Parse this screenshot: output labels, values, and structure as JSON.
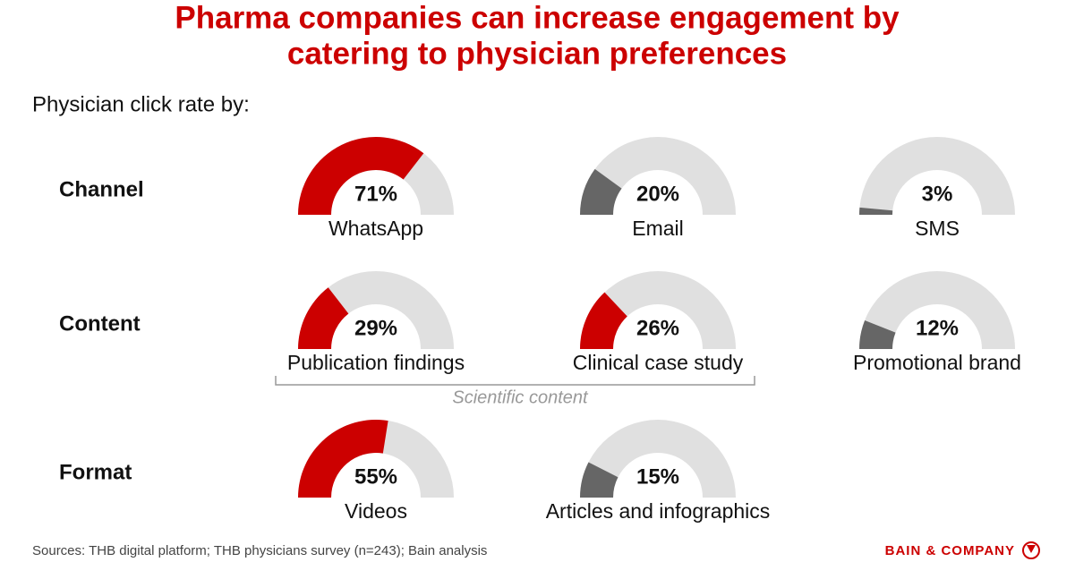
{
  "title_lines": [
    "Pharma companies can increase engagement by",
    "catering to physician preferences"
  ],
  "subtitle": "Physician click rate by:",
  "chart_data": [
    {
      "type": "gauge",
      "title": "Channel",
      "categories": [
        "WhatsApp",
        "Email",
        "SMS"
      ],
      "values": [
        71,
        20,
        3
      ],
      "value_labels": [
        "71%",
        "20%",
        "3%"
      ],
      "colors": [
        "#cc0000",
        "#666666",
        "#666666"
      ],
      "track_color": "#e0e0e0",
      "ylim": [
        0,
        100
      ]
    },
    {
      "type": "gauge",
      "title": "Content",
      "categories": [
        "Publication findings",
        "Clinical case study",
        "Promotional brand"
      ],
      "values": [
        29,
        26,
        12
      ],
      "value_labels": [
        "29%",
        "26%",
        "12%"
      ],
      "colors": [
        "#cc0000",
        "#cc0000",
        "#666666"
      ],
      "track_color": "#e0e0e0",
      "ylim": [
        0,
        100
      ],
      "annotation": "Scientific content"
    },
    {
      "type": "gauge",
      "title": "Format",
      "categories": [
        "Videos",
        "Articles and infographics"
      ],
      "values": [
        55,
        15
      ],
      "value_labels": [
        "55%",
        "15%"
      ],
      "colors": [
        "#cc0000",
        "#666666"
      ],
      "track_color": "#e0e0e0",
      "ylim": [
        0,
        100
      ]
    }
  ],
  "source": "Sources: THB digital platform; THB physicians survey (n=243); Bain analysis",
  "logo": "BAIN & COMPANY"
}
